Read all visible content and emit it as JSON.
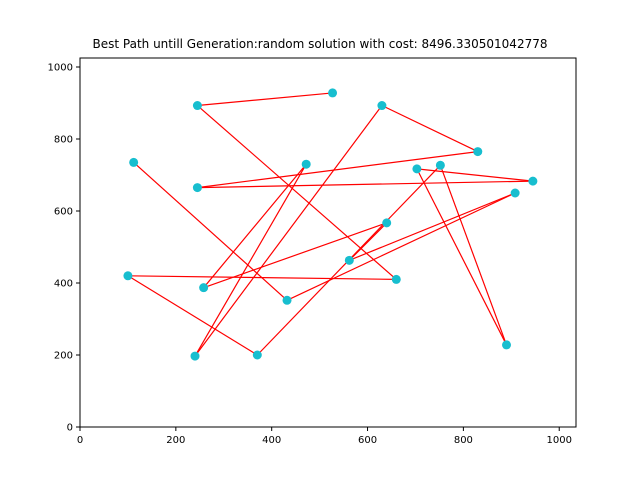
{
  "chart_data": {
    "type": "scatter",
    "title": "Best Path untill Generation:random solution with cost: 8496.330501042778",
    "xlabel": "",
    "ylabel": "",
    "xlim": [
      0,
      1035
    ],
    "ylim": [
      0,
      1025
    ],
    "xticks": [
      0,
      200,
      400,
      600,
      800,
      1000
    ],
    "yticks": [
      0,
      200,
      400,
      600,
      800,
      1000
    ],
    "point_color": "#17becf",
    "line_color": "#ff0000",
    "path": [
      [
        527,
        928
      ],
      [
        245,
        893
      ],
      [
        660,
        410
      ],
      [
        100,
        420
      ],
      [
        370,
        200
      ],
      [
        752,
        727
      ],
      [
        890,
        228
      ],
      [
        703,
        717
      ],
      [
        945,
        683
      ],
      [
        245,
        665
      ],
      [
        830,
        765
      ],
      [
        630,
        893
      ],
      [
        240,
        197
      ],
      [
        472,
        730
      ],
      [
        258,
        387
      ],
      [
        640,
        567
      ],
      [
        562,
        463
      ],
      [
        908,
        650
      ],
      [
        432,
        352
      ],
      [
        112,
        735
      ]
    ]
  }
}
